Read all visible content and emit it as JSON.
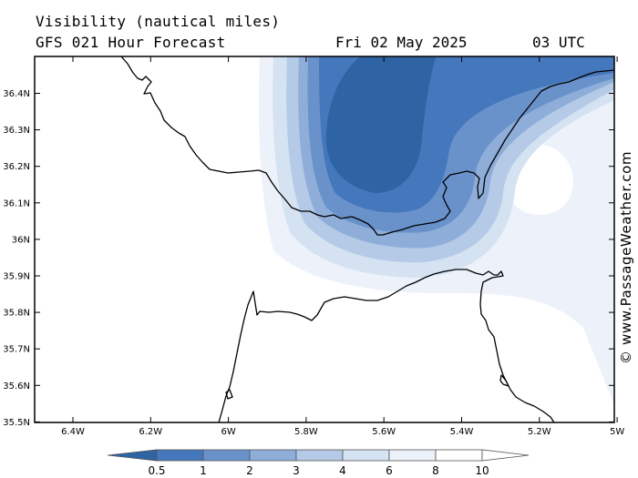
{
  "header": {
    "title": "Visibility (nautical miles)",
    "subtitle": "GFS 021 Hour Forecast",
    "date": "Fri 02 May 2025",
    "time": "03 UTC"
  },
  "watermark": "© www.PassageWeather.com",
  "axes": {
    "lat_labels": [
      "36.4N",
      "36.3N",
      "36.2N",
      "36.1N",
      "36N",
      "35.9N",
      "35.8N",
      "35.7N",
      "35.6N",
      "35.5N"
    ],
    "lon_labels": [
      "6.4W",
      "6.2W",
      "6W",
      "5.8W",
      "5.6W",
      "5.4W",
      "5.2W",
      "5W"
    ]
  },
  "legend": {
    "labels": [
      "0.5",
      "1",
      "2",
      "3",
      "4",
      "6",
      "8",
      "10"
    ],
    "colors": [
      "#2e64a4",
      "#4477bb",
      "#6992cb",
      "#8eaed9",
      "#b4cae7",
      "#d5e2f2",
      "#edf2fa",
      "#ffffff"
    ]
  }
}
